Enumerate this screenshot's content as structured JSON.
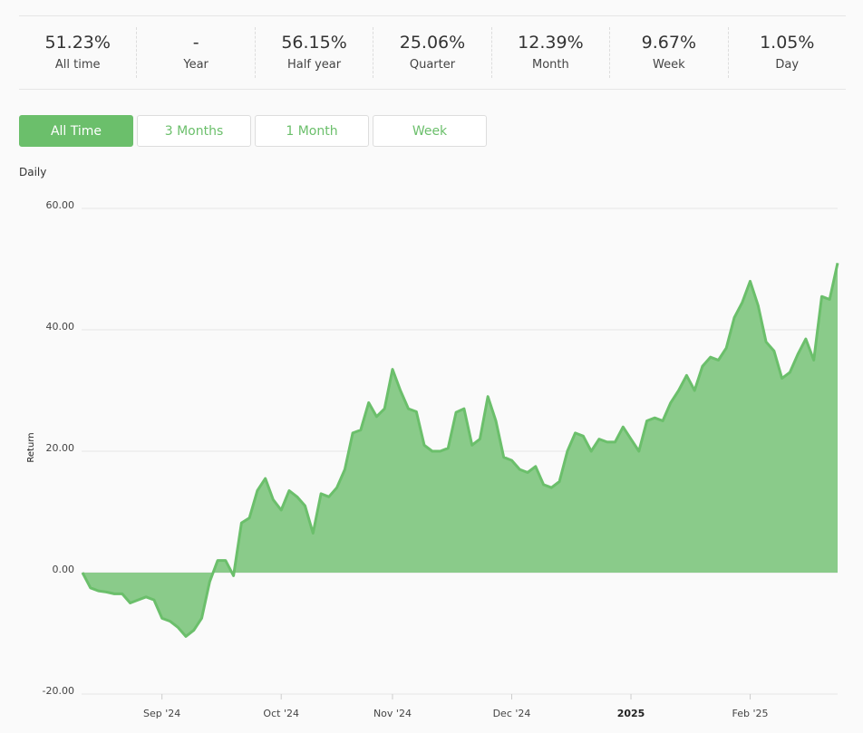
{
  "stats": [
    {
      "value": "51.23%",
      "label": "All time"
    },
    {
      "value": "-",
      "label": "Year"
    },
    {
      "value": "56.15%",
      "label": "Half year"
    },
    {
      "value": "25.06%",
      "label": "Quarter"
    },
    {
      "value": "12.39%",
      "label": "Month"
    },
    {
      "value": "9.67%",
      "label": "Week"
    },
    {
      "value": "1.05%",
      "label": "Day"
    }
  ],
  "buttons": [
    {
      "label": "All Time",
      "active": true
    },
    {
      "label": "3 Months",
      "active": false
    },
    {
      "label": "1 Month",
      "active": false
    },
    {
      "label": "Week",
      "active": false
    }
  ],
  "chart_data": {
    "type": "area",
    "title": "Daily",
    "y_label": "Return",
    "color": "#6bbf6b",
    "fill": "#8acb8a",
    "grid": true,
    "categories": [
      null,
      null,
      null,
      null,
      null,
      null,
      null,
      null,
      null,
      null,
      "Sep '24",
      null,
      null,
      null,
      null,
      null,
      null,
      null,
      null,
      null,
      null,
      null,
      null,
      null,
      null,
      "Oct '24",
      null,
      null,
      null,
      null,
      null,
      null,
      null,
      null,
      null,
      null,
      null,
      null,
      null,
      "Nov '24",
      null,
      null,
      null,
      null,
      null,
      null,
      null,
      null,
      null,
      null,
      null,
      null,
      null,
      null,
      "Dec '24",
      null,
      null,
      null,
      null,
      null,
      null,
      null,
      null,
      null,
      null,
      null,
      null,
      null,
      null,
      "2025",
      null,
      null,
      null,
      null,
      null,
      null,
      null,
      null,
      null,
      null,
      null,
      null,
      null,
      null,
      "Feb '25",
      null,
      null,
      null,
      null,
      null,
      null,
      null,
      null,
      null,
      null,
      null
    ],
    "values": [
      0,
      -2.5,
      -3,
      -3.2,
      -3.5,
      -3.5,
      -5,
      -4.5,
      -4,
      -4.5,
      -7.5,
      -8,
      -9,
      -10.5,
      -9.5,
      -7.5,
      -1.5,
      2,
      2,
      -0.5,
      8.2,
      9,
      13.5,
      15.5,
      12,
      10.3,
      13.5,
      12.5,
      11,
      6.5,
      13,
      12.5,
      14,
      17,
      23,
      23.5,
      28,
      25.7,
      27,
      33.5,
      30,
      27,
      26.5,
      21,
      20,
      20,
      20.5,
      26.4,
      27,
      21,
      22,
      29,
      25,
      19,
      18.5,
      17,
      16.5,
      17.5,
      14.5,
      14,
      15,
      20,
      23,
      22.5,
      20,
      22,
      21.5,
      21.5,
      24,
      22,
      20,
      25,
      25.5,
      25,
      28,
      30,
      32.5,
      30,
      34,
      35.5,
      35,
      37,
      42,
      44.5,
      48,
      44,
      38,
      36.5,
      32,
      33,
      36,
      38.5,
      35,
      45.5,
      45,
      51
    ],
    "ylim": [
      -20,
      60
    ],
    "yticks": [
      {
        "value": -20,
        "label": "-20.00"
      },
      {
        "value": 0,
        "label": "0.00"
      },
      {
        "value": 20,
        "label": "20.00"
      },
      {
        "value": 40,
        "label": "40.00"
      },
      {
        "value": 60,
        "label": "60.00"
      }
    ]
  }
}
